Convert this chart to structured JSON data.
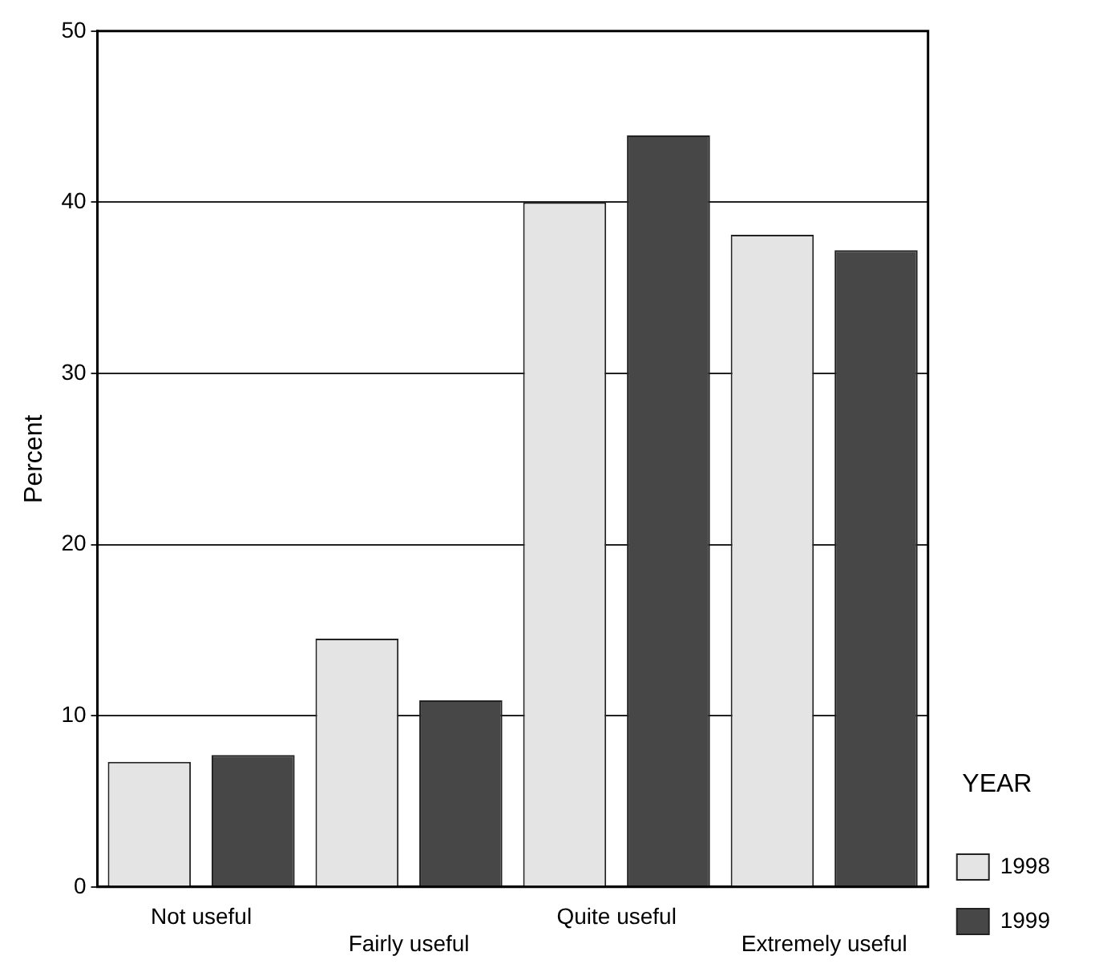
{
  "chart_data": {
    "type": "bar",
    "ylabel": "Percent",
    "legend_title": "YEAR",
    "categories": [
      "Not useful",
      "Fairly useful",
      "Quite useful",
      "Extremely useful"
    ],
    "series": [
      {
        "name": "1998",
        "color": "#e4e4e4",
        "values": [
          7.3,
          14.5,
          40.0,
          38.1
        ]
      },
      {
        "name": "1999",
        "color": "#474747",
        "values": [
          7.7,
          10.9,
          43.9,
          37.2
        ]
      }
    ],
    "ylim": [
      0,
      50
    ],
    "yticks": [
      0,
      10,
      20,
      30,
      40,
      50
    ],
    "grid": "y",
    "legend": "right"
  }
}
